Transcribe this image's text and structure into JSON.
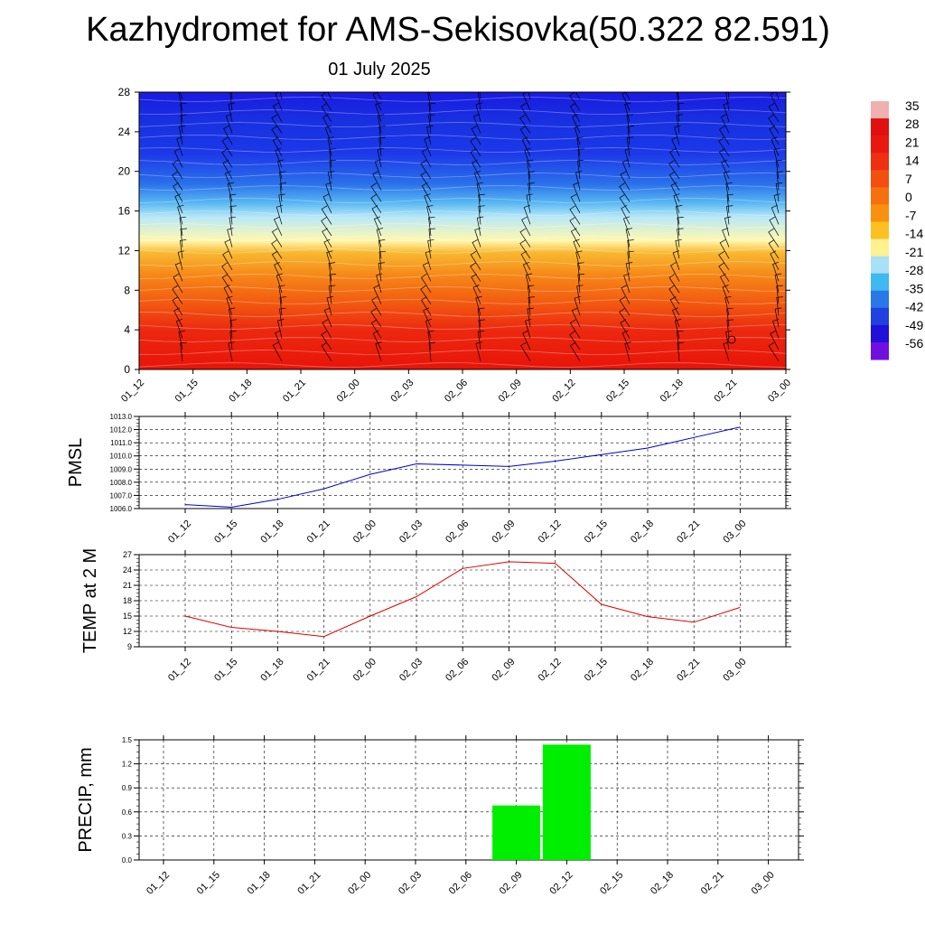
{
  "title": "Kazhydromet for AMS-Sekisovka(50.322 82.591)",
  "subtitle": "01 July 2025",
  "colorbar": {
    "labels": [
      "35",
      "28",
      "21",
      "14",
      "7",
      "0",
      "-7",
      "-14",
      "-21",
      "-28",
      "-35",
      "-42",
      "-49",
      "-56"
    ]
  },
  "chart_data": [
    {
      "type": "heatmap",
      "name": "",
      "x": [
        "01_12",
        "01_15",
        "01_18",
        "01_21",
        "02_00",
        "02_03",
        "02_06",
        "02_09",
        "02_12",
        "02_15",
        "02_18",
        "02_21",
        "03_00"
      ],
      "ylim": [
        0,
        28
      ],
      "yticks": [
        0,
        4,
        8,
        12,
        16,
        20,
        24,
        28
      ],
      "color_levels": [
        35,
        28,
        21,
        14,
        7,
        0,
        -7,
        -14,
        -21,
        -28,
        -35,
        -42,
        -49,
        -56
      ],
      "colors": [
        "#f0b0b0",
        "#e01010",
        "#e81810",
        "#ee3010",
        "#f25010",
        "#f67010",
        "#fa9010",
        "#fcc020",
        "#fff090",
        "#a8e0f8",
        "#40b8f0",
        "#2878e8",
        "#2040e0",
        "#2010d8",
        "#7010e0"
      ]
    },
    {
      "type": "line",
      "ylabel": "PMSL",
      "x": [
        "01_12",
        "01_15",
        "01_18",
        "01_21",
        "02_00",
        "02_03",
        "02_06",
        "02_09",
        "02_12",
        "02_15",
        "02_18",
        "02_21",
        "03_00"
      ],
      "values": [
        1006.3,
        1006.1,
        1006.7,
        1007.5,
        1008.6,
        1009.4,
        1009.3,
        1009.2,
        1009.6,
        1010.1,
        1010.6,
        1011.4,
        1012.2
      ],
      "ylim": [
        1006.0,
        1013.0
      ],
      "yticks": [
        "1006.0",
        "1007.0",
        "1008.0",
        "1009.0",
        "1010.0",
        "1011.0",
        "1012.0",
        "1013.0"
      ],
      "color": "#0000cc",
      "grid": true
    },
    {
      "type": "line",
      "ylabel": "TEMP at 2 M",
      "x": [
        "01_12",
        "01_15",
        "01_18",
        "01_21",
        "02_00",
        "02_03",
        "02_06",
        "02_09",
        "02_12",
        "02_15",
        "02_18",
        "02_21",
        "03_00"
      ],
      "values": [
        15.0,
        12.8,
        12.0,
        11.0,
        15.0,
        18.8,
        24.3,
        25.6,
        25.3,
        17.3,
        14.9,
        13.8,
        16.7
      ],
      "ylim": [
        9,
        27
      ],
      "yticks": [
        "9",
        "12",
        "15",
        "18",
        "21",
        "24",
        "27"
      ],
      "color": "#dd0000",
      "grid": true
    },
    {
      "type": "bar",
      "ylabel": "PRECIP, mm",
      "categories": [
        "01_12",
        "01_15",
        "01_18",
        "01_21",
        "02_00",
        "02_03",
        "02_06",
        "02_09",
        "02_12",
        "02_15",
        "02_18",
        "02_21",
        "03_00"
      ],
      "values": [
        0,
        0,
        0,
        0,
        0,
        0,
        0,
        0.68,
        1.44,
        0,
        0,
        0,
        0
      ],
      "ylim": [
        0,
        1.5
      ],
      "yticks": [
        "0.0",
        "0.3",
        "0.6",
        "0.9",
        "1.2",
        "1.5"
      ],
      "color": "#00ee00",
      "grid": true
    }
  ]
}
